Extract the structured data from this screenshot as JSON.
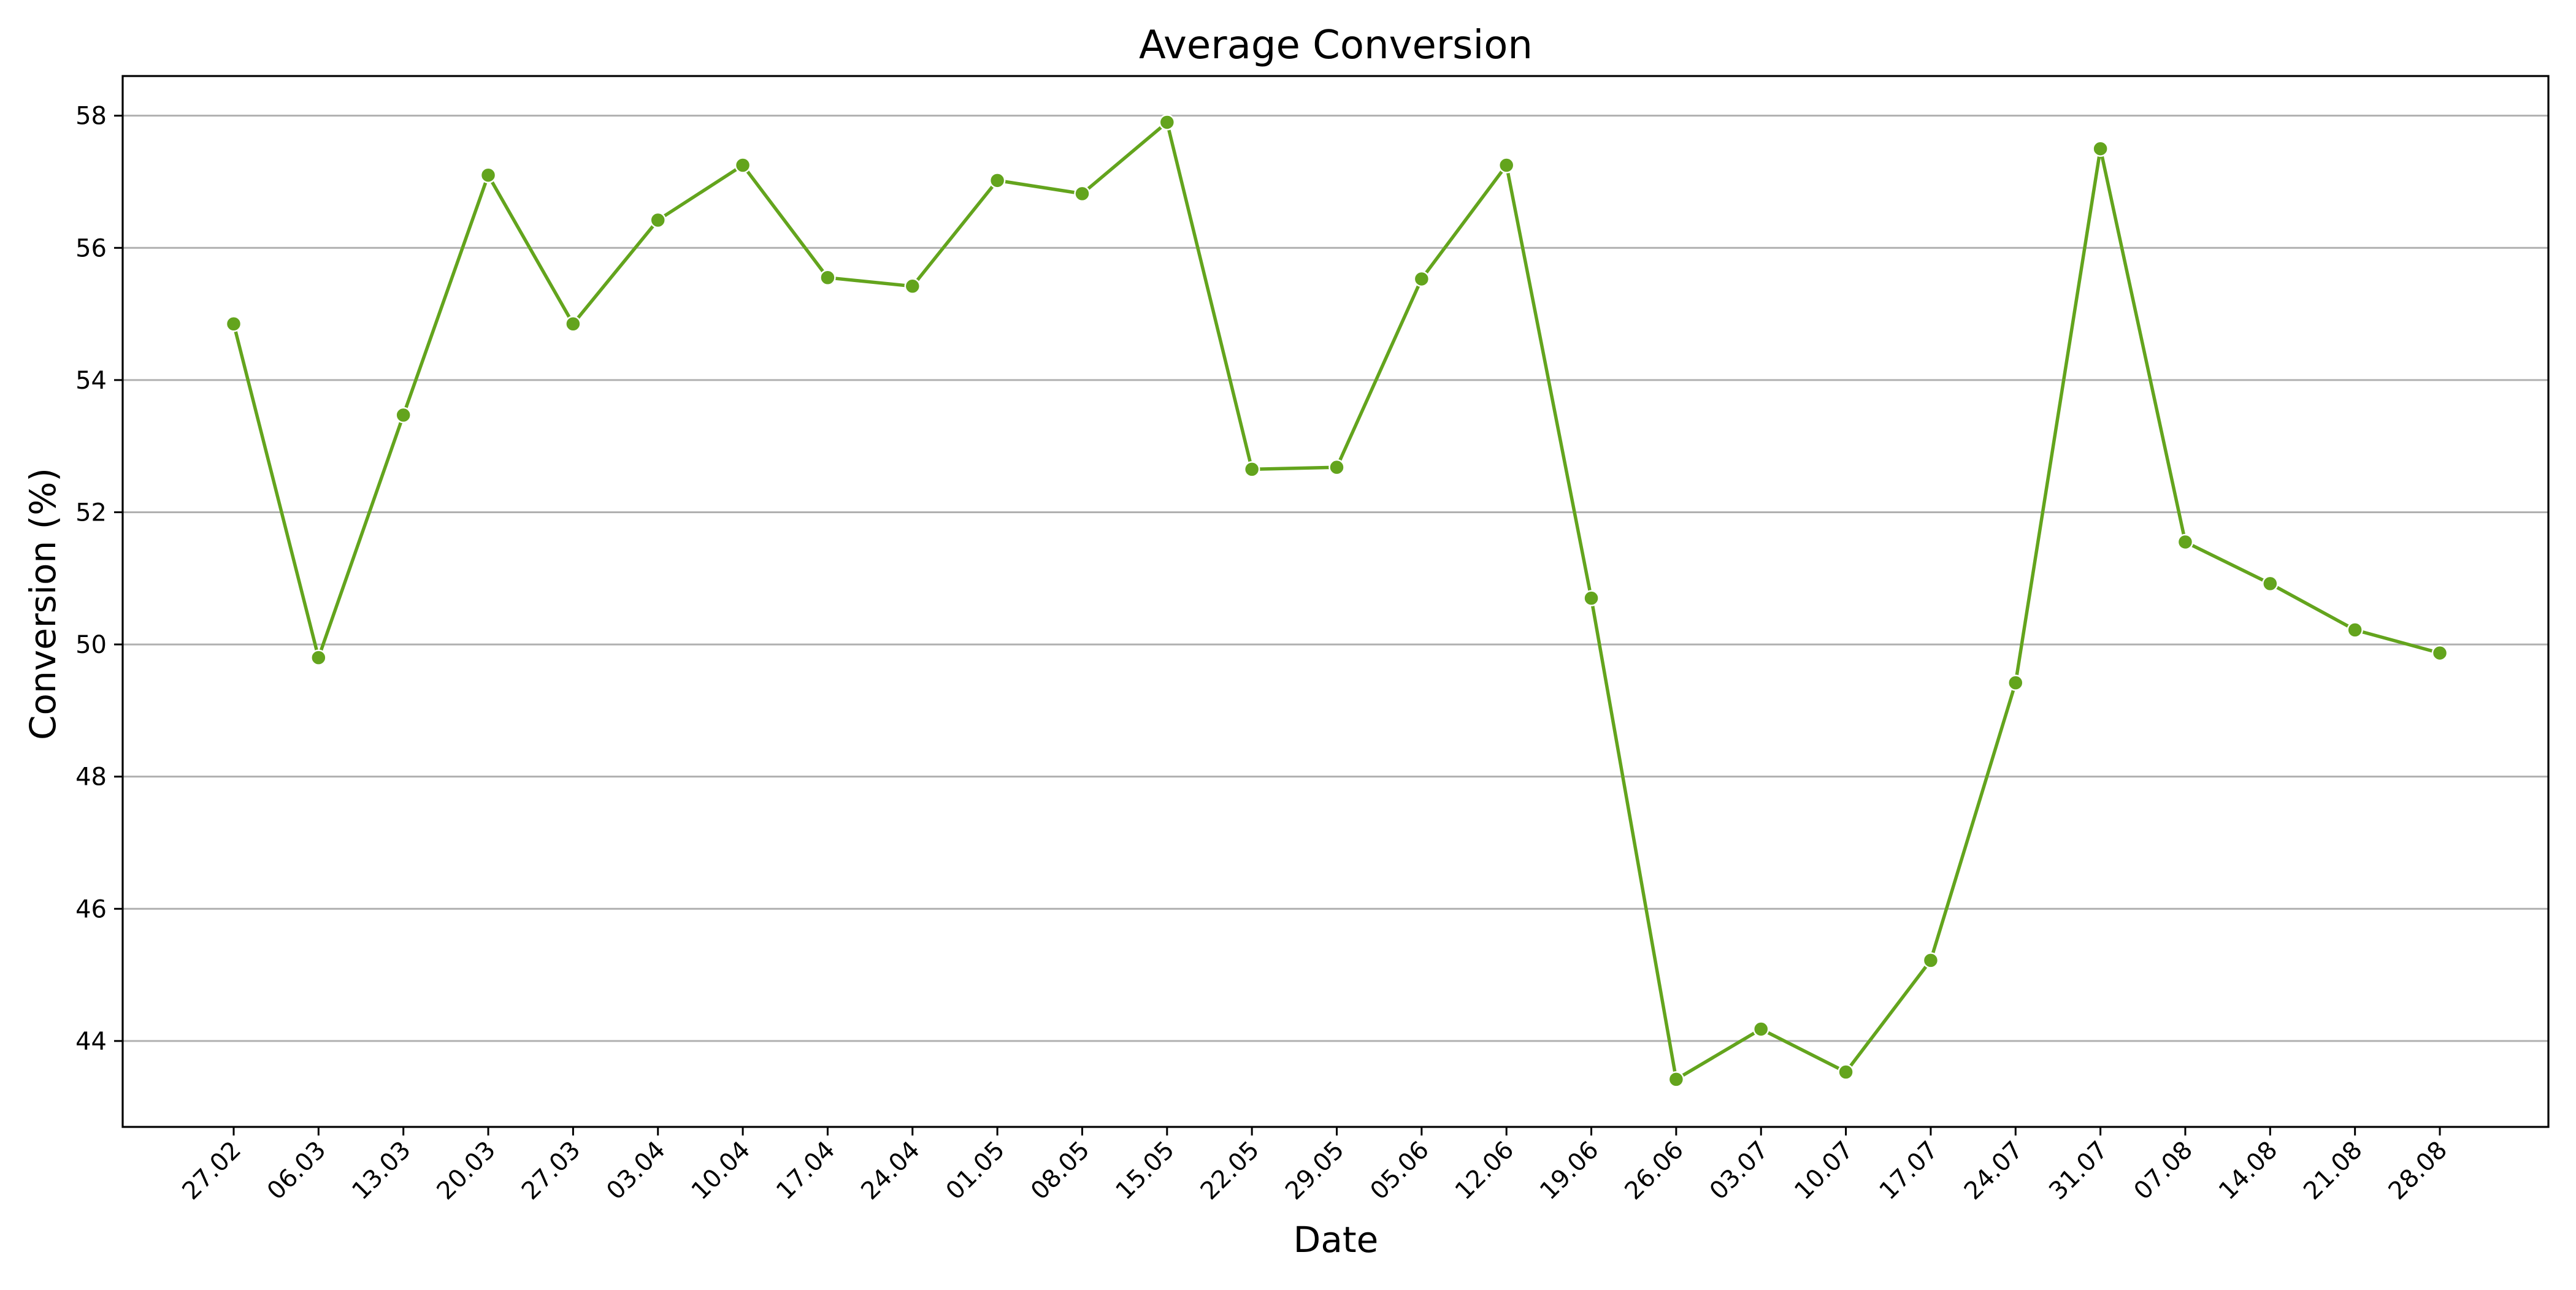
{
  "chart_data": {
    "type": "line",
    "title": "Average Conversion",
    "xlabel": "Date",
    "ylabel": "Conversion (%)",
    "ylim": [
      42.7,
      58.6
    ],
    "yticks": [
      44,
      46,
      48,
      50,
      52,
      54,
      56,
      58
    ],
    "grid": "horizontal",
    "legend": "none",
    "x": [
      "27.02",
      "06.03",
      "13.03",
      "20.03",
      "27.03",
      "03.04",
      "10.04",
      "17.04",
      "24.04",
      "01.05",
      "08.05",
      "15.05",
      "22.05",
      "29.05",
      "05.06",
      "12.06",
      "19.06",
      "26.06",
      "03.07",
      "10.07",
      "17.07",
      "24.07",
      "31.07",
      "07.08",
      "14.08",
      "21.08",
      "28.08"
    ],
    "series": [
      {
        "color": "#63a41d",
        "values": [
          54.85,
          49.8,
          53.47,
          57.1,
          54.85,
          56.42,
          57.25,
          55.55,
          55.42,
          57.02,
          56.82,
          57.9,
          52.65,
          52.68,
          55.53,
          57.25,
          50.7,
          43.42,
          44.18,
          43.53,
          45.22,
          49.42,
          57.5,
          51.55,
          50.92,
          50.22,
          49.87
        ]
      }
    ]
  }
}
